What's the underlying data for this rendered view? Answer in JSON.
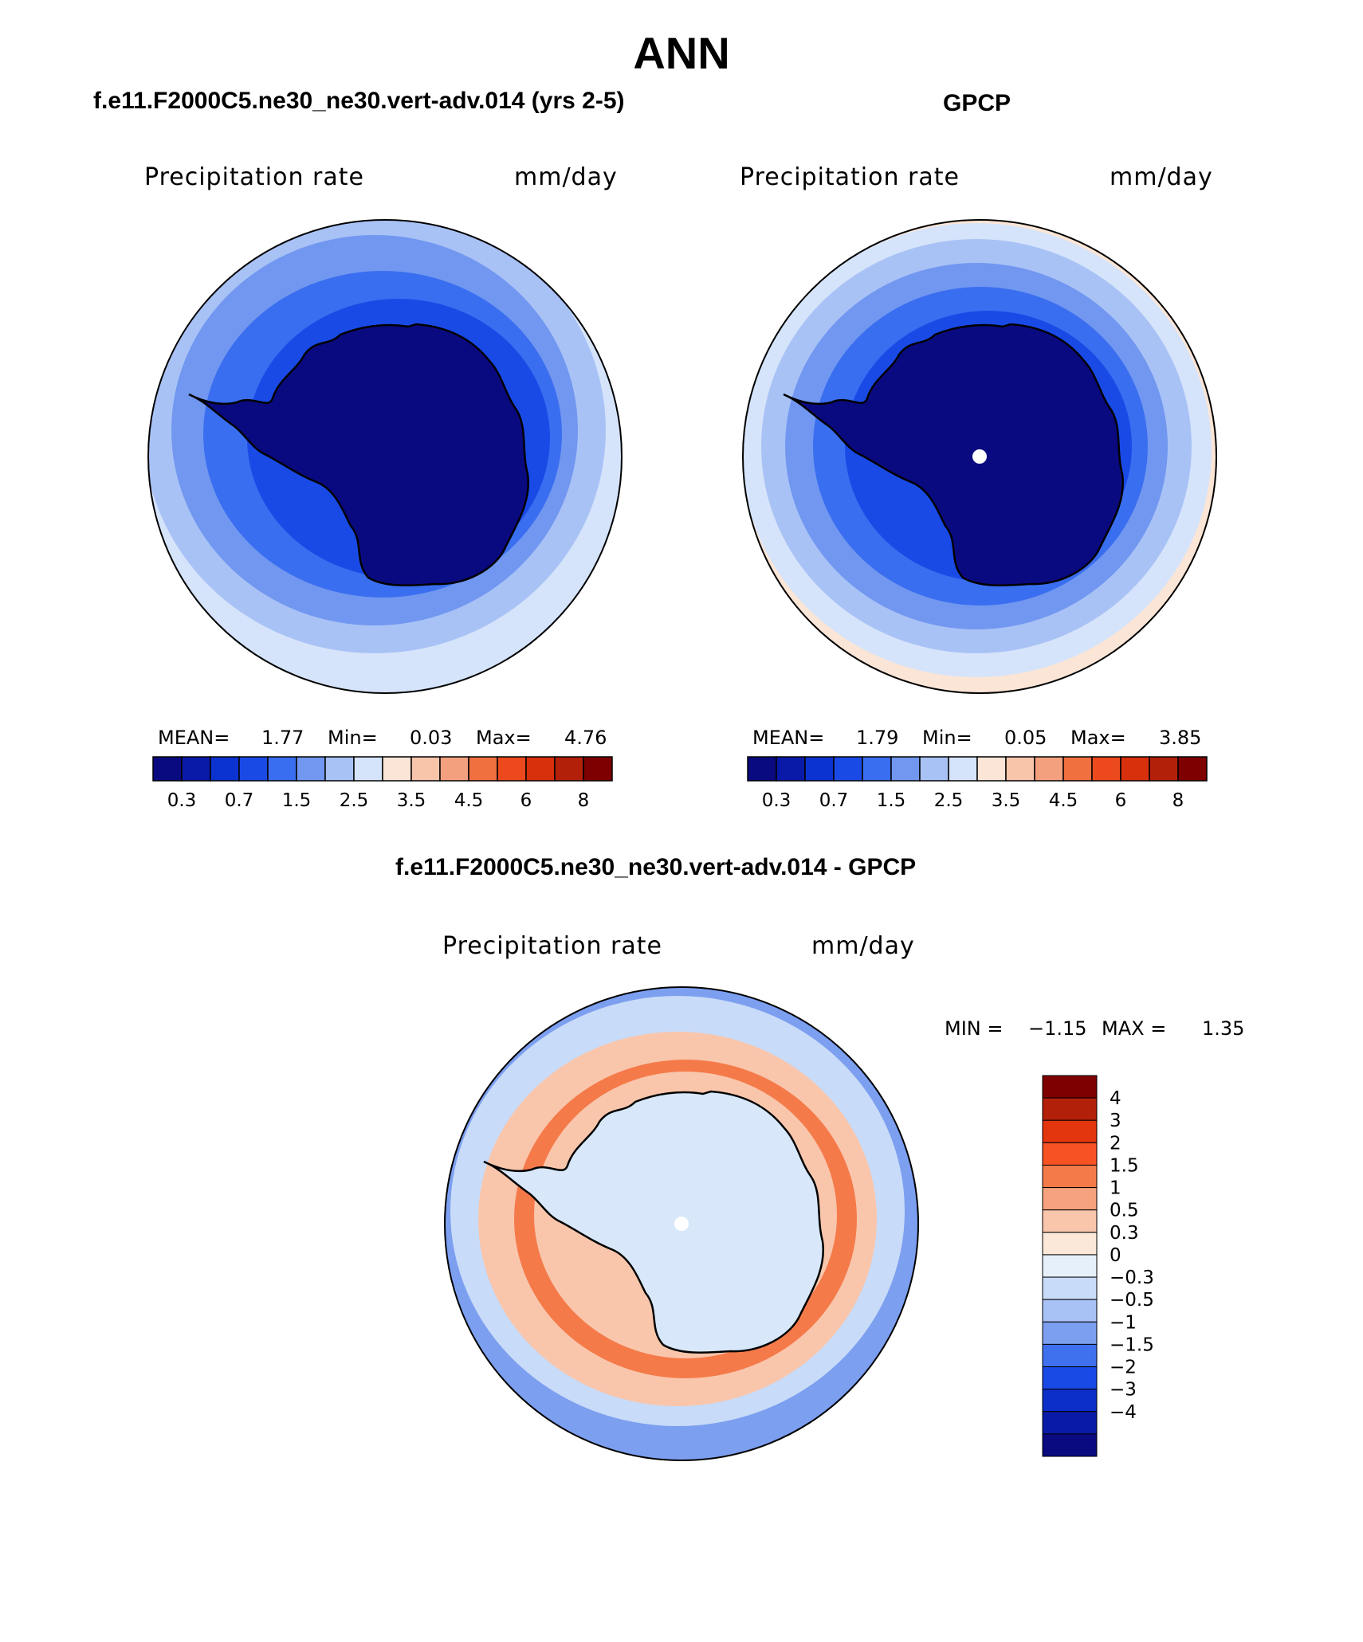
{
  "figure": {
    "title": "ANN"
  },
  "panels": [
    {
      "title": "f.e11.F2000C5.ne30_ne30.vert-adv.014 (yrs 2-5)",
      "variable": "Precipitation rate",
      "units": "mm/day",
      "stats": {
        "mean_label": "MEAN=",
        "mean": "1.77",
        "min_label": "Min=",
        "min": "0.03",
        "max_label": "Max=",
        "max": "4.76"
      }
    },
    {
      "title": "GPCP",
      "variable": "Precipitation rate",
      "units": "mm/day",
      "stats": {
        "mean_label": "MEAN=",
        "mean": "1.79",
        "min_label": "Min=",
        "min": "0.05",
        "max_label": "Max=",
        "max": "3.85"
      }
    },
    {
      "title": "f.e11.F2000C5.ne30_ne30.vert-adv.014 - GPCP",
      "variable": "Precipitation rate",
      "units": "mm/day",
      "stats": {
        "min_label": "MIN =",
        "min": "−1.15",
        "max_label": "MAX =",
        "max": "1.35"
      }
    }
  ],
  "colorbars": {
    "abs": {
      "colors": [
        "#0a0a80",
        "#0a1aa8",
        "#0b33d0",
        "#1a4ae6",
        "#3a6ef0",
        "#7197f0",
        "#a9c2f6",
        "#d5e4fa",
        "#fbe5d6",
        "#f8c4aa",
        "#f3a07f",
        "#f07040",
        "#ec4a1c",
        "#d8300c",
        "#b3200a",
        "#7e0000"
      ],
      "tick_labels": [
        "0.3",
        "0.7",
        "1.5",
        "2.5",
        "3.5",
        "4.5",
        "6",
        "8"
      ]
    },
    "diff": {
      "colors": [
        "#7e0000",
        "#b3200a",
        "#e3360e",
        "#f65224",
        "#f57a4a",
        "#f7a27e",
        "#f9c6ac",
        "#fbe8d8",
        "#e6f0fb",
        "#c8dbf8",
        "#a9c2f6",
        "#7c9ff0",
        "#3f70ee",
        "#1a4ae6",
        "#0b2fc8",
        "#0a1aa8",
        "#0a0a80"
      ],
      "tick_labels": [
        "4",
        "3",
        "2",
        "1.5",
        "1",
        "0.5",
        "0.3",
        "0",
        "−0.3",
        "−0.5",
        "−1",
        "−1.5",
        "−2",
        "−3",
        "−4"
      ]
    }
  },
  "maps": {
    "projection": "south polar stereographic",
    "panel1_fields": {
      "outer_band": "#d5e4fa",
      "ring_1": "#a9c2f6",
      "ring_2": "#7197f0",
      "ring_3": "#3a6ef0",
      "ring_4": "#1a4ae6",
      "interior": "#0a0a80"
    },
    "panel2_fields": {
      "outer_band": "#fbe5d6",
      "ring_0": "#d5e4fa",
      "ring_1": "#a9c2f6",
      "ring_2": "#7197f0",
      "ring_3": "#3a6ef0",
      "ring_4": "#1a4ae6",
      "interior": "#0a0a80"
    },
    "panel3_fields": {
      "outer_band": "#7c9ff0",
      "ring_1": "#c8dbf8",
      "ring_2": "#f9c6ac",
      "ring_3": "#f57a4a",
      "interior": "#d8e8fa"
    }
  }
}
